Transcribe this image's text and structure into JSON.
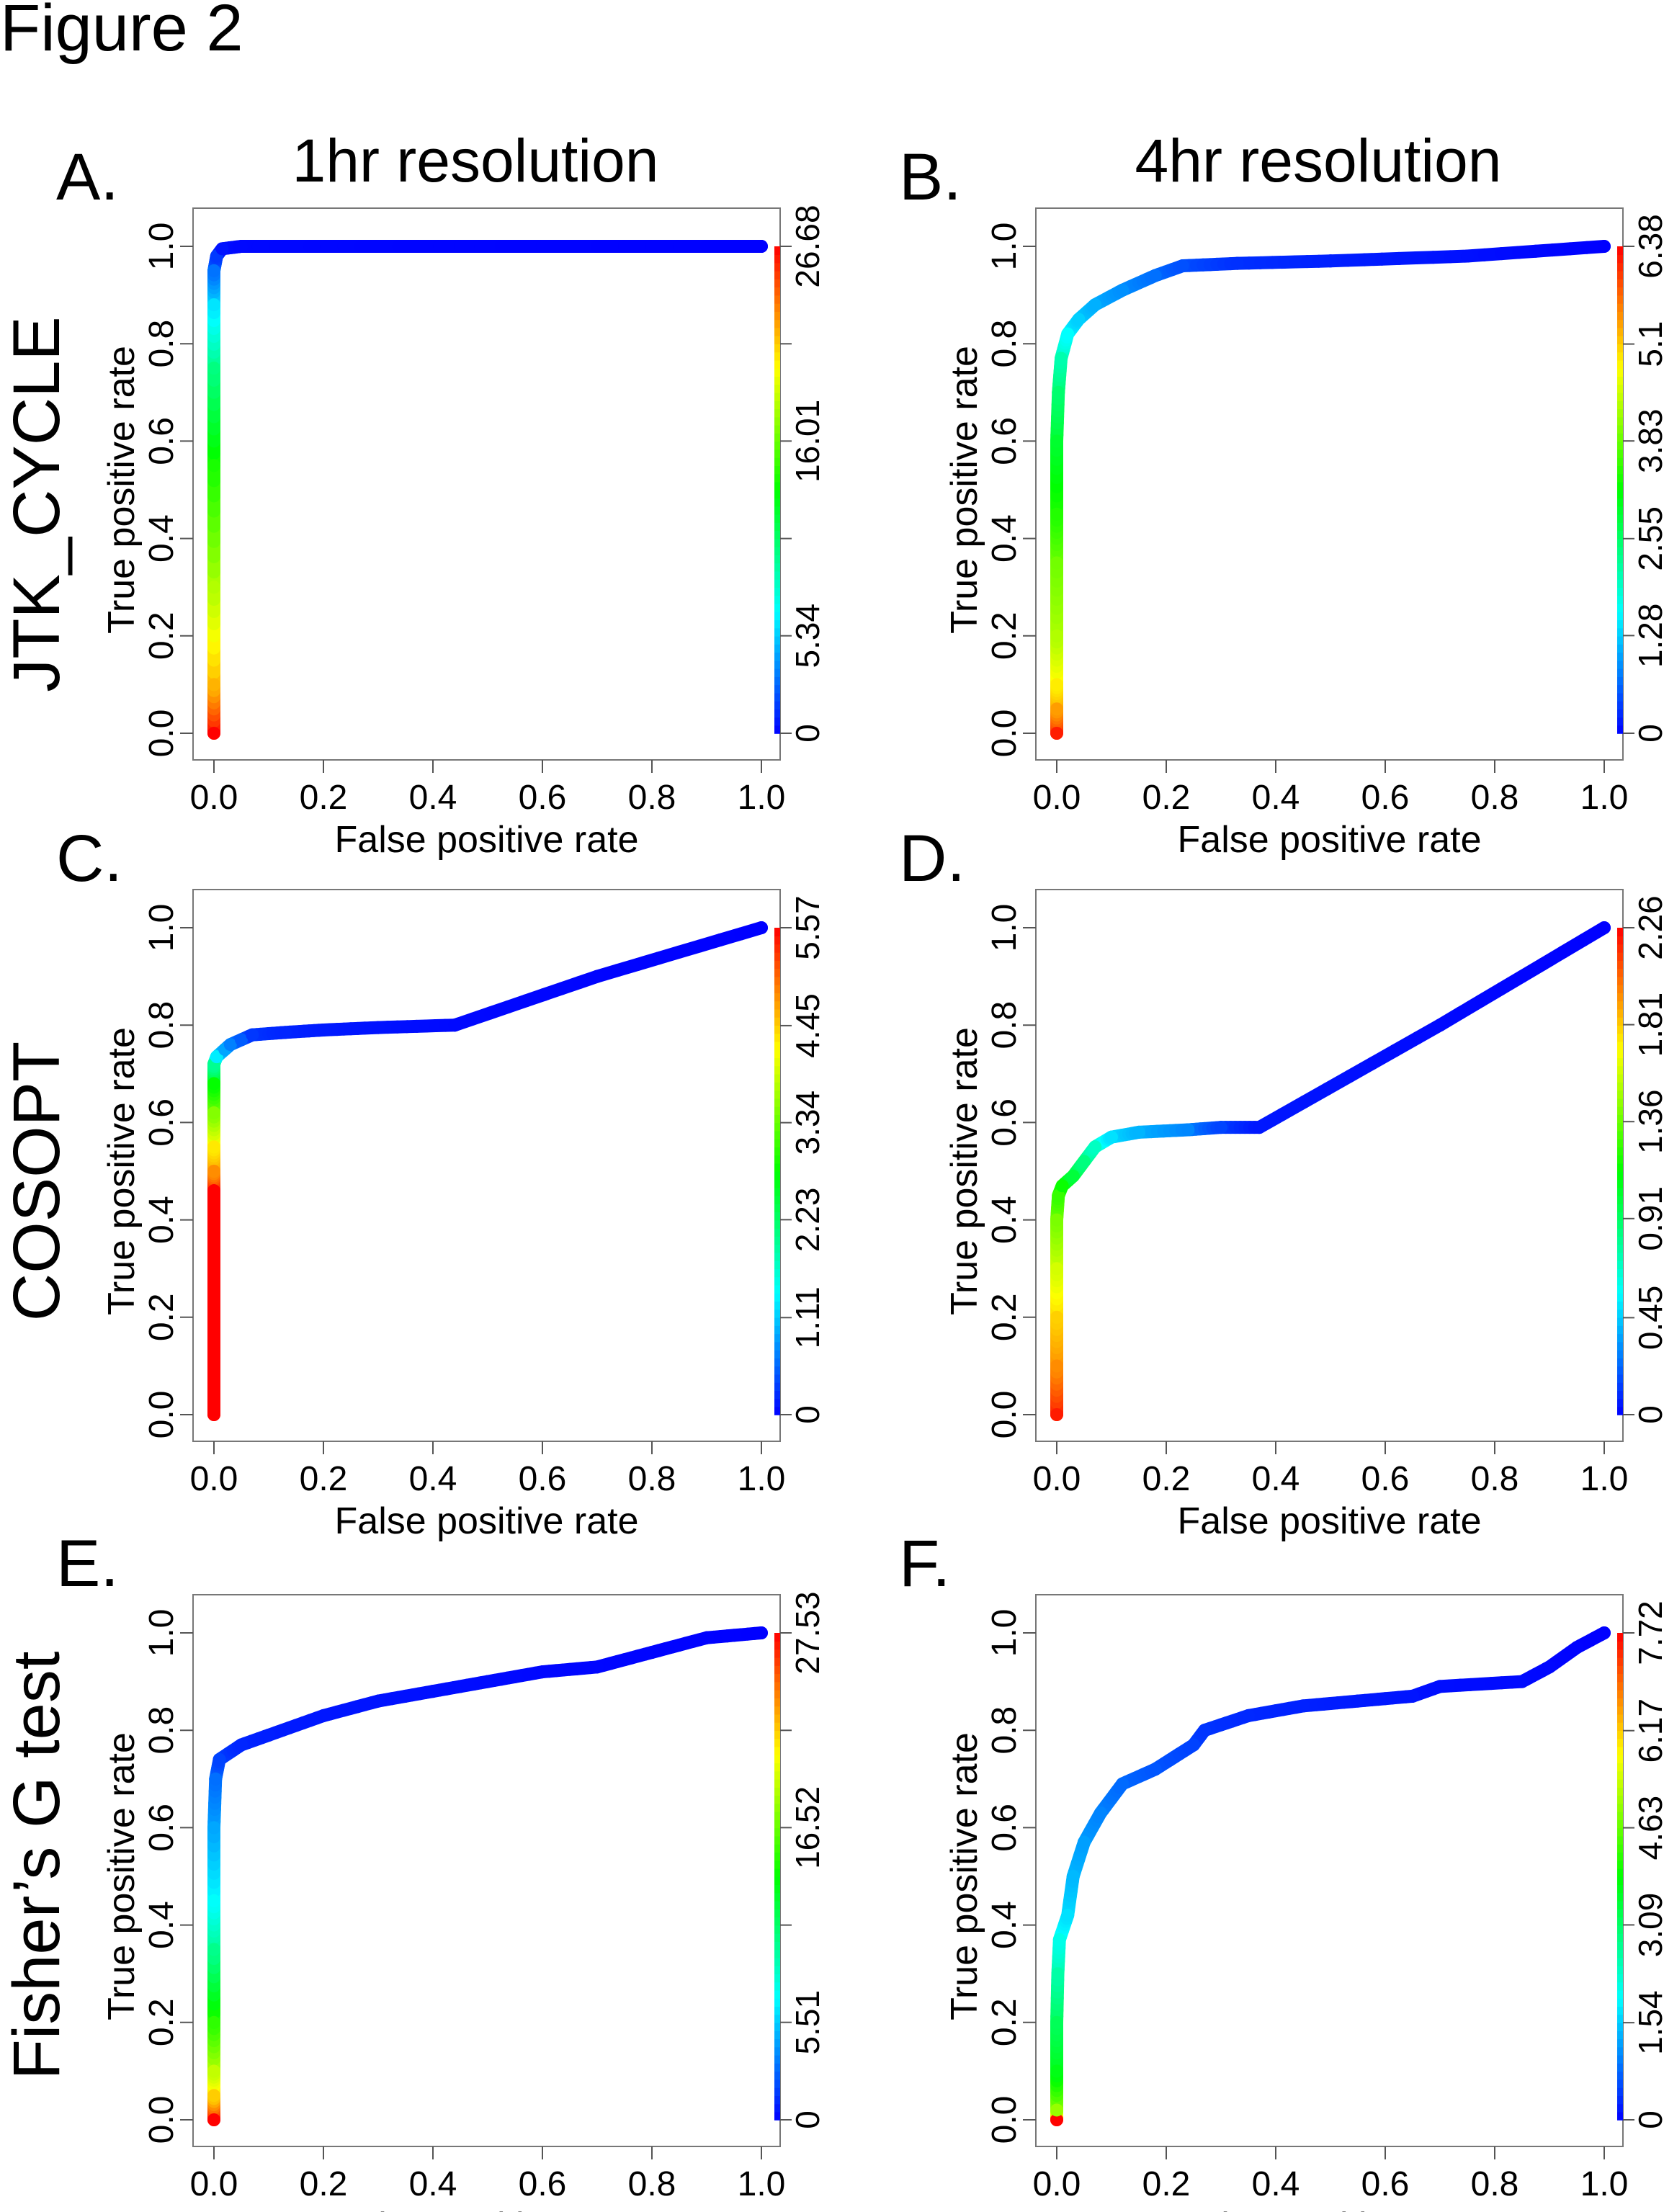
{
  "figure": {
    "title": "Figure 2",
    "column_titles": [
      "1hr resolution",
      "4hr resolution"
    ],
    "row_labels": [
      "JTK_CYCLE",
      "COSOPT",
      "Fisher’s G test"
    ]
  },
  "chart_data": [
    {
      "panel": "A.",
      "type": "line",
      "method": "JTK_CYCLE",
      "resolution": "1hr resolution",
      "xlabel": "False positive rate",
      "ylabel": "True positive rate",
      "xlim": [
        0,
        1
      ],
      "ylim": [
        0,
        1
      ],
      "xticks": [
        "0.0",
        "0.2",
        "0.4",
        "0.6",
        "0.8",
        "1.0"
      ],
      "yticks": [
        "0.0",
        "0.2",
        "0.4",
        "0.6",
        "0.8",
        "1.0"
      ],
      "colorbar": {
        "range": [
          0,
          26.68
        ],
        "tick_labels": [
          "0",
          "5.34",
          "",
          "16.01",
          "",
          "26.68"
        ],
        "tick_values": [
          0,
          5.34,
          10.67,
          16.01,
          21.34,
          26.68
        ],
        "colormap": "rainbow (blue-low to red-high)"
      },
      "points": [
        [
          0,
          0,
          26.68
        ],
        [
          0,
          0.1,
          22
        ],
        [
          0,
          0.3,
          18
        ],
        [
          0,
          0.55,
          14
        ],
        [
          0,
          0.75,
          10
        ],
        [
          0,
          0.88,
          6
        ],
        [
          0,
          0.95,
          3
        ],
        [
          0.005,
          0.98,
          1.5
        ],
        [
          0.015,
          0.995,
          0.5
        ],
        [
          0.05,
          1.0,
          0.2
        ],
        [
          0.3,
          1.0,
          0.1
        ],
        [
          0.6,
          1.0,
          0.05
        ],
        [
          1.0,
          1.0,
          0
        ]
      ]
    },
    {
      "panel": "B.",
      "type": "line",
      "method": "JTK_CYCLE",
      "resolution": "4hr resolution",
      "xlabel": "False positive rate",
      "ylabel": "True positive rate",
      "xlim": [
        0,
        1
      ],
      "ylim": [
        0,
        1
      ],
      "xticks": [
        "0.0",
        "0.2",
        "0.4",
        "0.6",
        "0.8",
        "1.0"
      ],
      "yticks": [
        "0.0",
        "0.2",
        "0.4",
        "0.6",
        "0.8",
        "1.0"
      ],
      "colorbar": {
        "range": [
          0,
          6.38
        ],
        "tick_labels": [
          "0",
          "1.28",
          "2.55",
          "3.83",
          "5.1",
          "6.38"
        ],
        "tick_values": [
          0,
          1.28,
          2.55,
          3.83,
          5.1,
          6.38
        ],
        "colormap": "rainbow (blue-low to red-high)"
      },
      "points": [
        [
          0,
          0,
          6.2
        ],
        [
          0,
          0.05,
          5.4
        ],
        [
          0,
          0.1,
          4.9
        ],
        [
          0,
          0.2,
          4.3
        ],
        [
          0,
          0.35,
          3.9
        ],
        [
          0,
          0.45,
          3.4
        ],
        [
          0,
          0.6,
          2.9
        ],
        [
          0.003,
          0.7,
          2.5
        ],
        [
          0.008,
          0.77,
          2.1
        ],
        [
          0.02,
          0.82,
          1.6
        ],
        [
          0.04,
          0.85,
          1.3
        ],
        [
          0.07,
          0.88,
          1.1
        ],
        [
          0.12,
          0.91,
          0.9
        ],
        [
          0.18,
          0.94,
          0.7
        ],
        [
          0.23,
          0.96,
          0.5
        ],
        [
          0.33,
          0.965,
          0.3
        ],
        [
          0.5,
          0.97,
          0.2
        ],
        [
          0.75,
          0.98,
          0.1
        ],
        [
          1.0,
          1.0,
          0
        ]
      ]
    },
    {
      "panel": "C.",
      "type": "line",
      "method": "COSOPT",
      "resolution": "1hr resolution",
      "xlabel": "False positive rate",
      "ylabel": "True positive rate",
      "xlim": [
        0,
        1
      ],
      "ylim": [
        0,
        1
      ],
      "xticks": [
        "0.0",
        "0.2",
        "0.4",
        "0.6",
        "0.8",
        "1.0"
      ],
      "yticks": [
        "0.0",
        "0.2",
        "0.4",
        "0.6",
        "0.8",
        "1.0"
      ],
      "colorbar": {
        "range": [
          0,
          5.57
        ],
        "tick_labels": [
          "0",
          "1.11",
          "2.23",
          "3.34",
          "4.45",
          "5.57"
        ],
        "tick_values": [
          0,
          1.11,
          2.23,
          3.34,
          4.45,
          5.57
        ],
        "colormap": "rainbow (blue-low to red-high)"
      },
      "points": [
        [
          0,
          0,
          5.57
        ],
        [
          0,
          0.46,
          5.57
        ],
        [
          0,
          0.5,
          4.8
        ],
        [
          0,
          0.55,
          4.3
        ],
        [
          0,
          0.62,
          3.5
        ],
        [
          0,
          0.68,
          2.8
        ],
        [
          0,
          0.72,
          2.0
        ],
        [
          0.005,
          0.735,
          1.3
        ],
        [
          0.02,
          0.75,
          0.9
        ],
        [
          0.03,
          0.76,
          0.7
        ],
        [
          0.05,
          0.77,
          0.5
        ],
        [
          0.07,
          0.78,
          0.3
        ],
        [
          0.13,
          0.785,
          0.2
        ],
        [
          0.2,
          0.79,
          0.15
        ],
        [
          0.3,
          0.795,
          0.1
        ],
        [
          0.44,
          0.8,
          0.05
        ],
        [
          0.7,
          0.9,
          0.02
        ],
        [
          1.0,
          1.0,
          0
        ]
      ]
    },
    {
      "panel": "D.",
      "type": "line",
      "method": "COSOPT",
      "resolution": "4hr resolution",
      "xlabel": "False positive rate",
      "ylabel": "True positive rate",
      "xlim": [
        0,
        1
      ],
      "ylim": [
        0,
        1
      ],
      "xticks": [
        "0.0",
        "0.2",
        "0.4",
        "0.6",
        "0.8",
        "1.0"
      ],
      "yticks": [
        "0.0",
        "0.2",
        "0.4",
        "0.6",
        "0.8",
        "1.0"
      ],
      "colorbar": {
        "range": [
          0,
          2.26
        ],
        "tick_labels": [
          "0",
          "0.45",
          "0.91",
          "1.36",
          "1.81",
          "2.26"
        ],
        "tick_values": [
          0,
          0.45,
          0.91,
          1.36,
          1.81,
          2.26
        ],
        "colormap": "rainbow (blue-low to red-high)"
      },
      "points": [
        [
          0,
          0,
          2.2
        ],
        [
          0,
          0.1,
          1.95
        ],
        [
          0,
          0.2,
          1.8
        ],
        [
          0,
          0.3,
          1.6
        ],
        [
          0,
          0.4,
          1.4
        ],
        [
          0.003,
          0.45,
          1.25
        ],
        [
          0.01,
          0.47,
          1.15
        ],
        [
          0.03,
          0.49,
          1.0
        ],
        [
          0.05,
          0.52,
          0.85
        ],
        [
          0.07,
          0.55,
          0.7
        ],
        [
          0.1,
          0.57,
          0.5
        ],
        [
          0.15,
          0.58,
          0.4
        ],
        [
          0.24,
          0.585,
          0.3
        ],
        [
          0.3,
          0.59,
          0.15
        ],
        [
          0.37,
          0.59,
          0.05
        ],
        [
          0.7,
          0.8,
          0.02
        ],
        [
          1.0,
          1.0,
          0
        ]
      ]
    },
    {
      "panel": "E.",
      "type": "line",
      "method": "Fisher’s G test",
      "resolution": "1hr resolution",
      "xlabel": "False positive rate",
      "ylabel": "True positive rate",
      "xlim": [
        0,
        1
      ],
      "ylim": [
        0,
        1
      ],
      "xticks": [
        "0.0",
        "0.2",
        "0.4",
        "0.6",
        "0.8",
        "1.0"
      ],
      "yticks": [
        "0.0",
        "0.2",
        "0.4",
        "0.6",
        "0.8",
        "1.0"
      ],
      "colorbar": {
        "range": [
          0,
          27.53
        ],
        "tick_labels": [
          "0",
          "5.51",
          "",
          "16.52",
          "",
          "27.53"
        ],
        "tick_values": [
          0,
          5.51,
          11.01,
          16.52,
          22.02,
          27.53
        ],
        "colormap": "rainbow (blue-low to red-high)"
      },
      "points": [
        [
          0,
          0,
          27.5
        ],
        [
          0,
          0.05,
          22
        ],
        [
          0,
          0.1,
          19
        ],
        [
          0,
          0.2,
          15
        ],
        [
          0,
          0.35,
          10
        ],
        [
          0,
          0.45,
          7
        ],
        [
          0,
          0.6,
          4.5
        ],
        [
          0.003,
          0.7,
          3.0
        ],
        [
          0.01,
          0.74,
          1.8
        ],
        [
          0.05,
          0.77,
          1.0
        ],
        [
          0.1,
          0.79,
          0.8
        ],
        [
          0.2,
          0.83,
          0.6
        ],
        [
          0.3,
          0.86,
          0.5
        ],
        [
          0.4,
          0.88,
          0.4
        ],
        [
          0.5,
          0.9,
          0.3
        ],
        [
          0.6,
          0.92,
          0.2
        ],
        [
          0.7,
          0.93,
          0.15
        ],
        [
          0.8,
          0.96,
          0.1
        ],
        [
          0.9,
          0.99,
          0.05
        ],
        [
          1.0,
          1.0,
          0
        ]
      ]
    },
    {
      "panel": "F.",
      "type": "line",
      "method": "Fisher’s G test",
      "resolution": "4hr resolution",
      "xlabel": "False positive rate",
      "ylabel": "True positive rate",
      "xlim": [
        0,
        1
      ],
      "ylim": [
        0,
        1
      ],
      "xticks": [
        "0.0",
        "0.2",
        "0.4",
        "0.6",
        "0.8",
        "1.0"
      ],
      "yticks": [
        "0.0",
        "0.2",
        "0.4",
        "0.6",
        "0.8",
        "1.0"
      ],
      "colorbar": {
        "range": [
          0,
          7.72
        ],
        "tick_labels": [
          "0",
          "1.54",
          "3.09",
          "4.63",
          "6.17",
          "7.72"
        ],
        "tick_values": [
          0,
          1.54,
          3.09,
          4.63,
          6.17,
          7.72
        ],
        "colormap": "rainbow (blue-low to red-high)"
      },
      "points": [
        [
          0,
          0,
          7.7
        ],
        [
          0,
          0.02,
          5.0
        ],
        [
          0,
          0.1,
          3.7
        ],
        [
          0,
          0.2,
          3.2
        ],
        [
          0.002,
          0.3,
          2.6
        ],
        [
          0.005,
          0.37,
          2.1
        ],
        [
          0.02,
          0.42,
          1.7
        ],
        [
          0.03,
          0.5,
          1.4
        ],
        [
          0.05,
          0.57,
          1.2
        ],
        [
          0.08,
          0.63,
          1.0
        ],
        [
          0.12,
          0.69,
          0.8
        ],
        [
          0.18,
          0.72,
          0.65
        ],
        [
          0.25,
          0.77,
          0.5
        ],
        [
          0.27,
          0.8,
          0.4
        ],
        [
          0.35,
          0.83,
          0.3
        ],
        [
          0.45,
          0.85,
          0.25
        ],
        [
          0.55,
          0.86,
          0.2
        ],
        [
          0.65,
          0.87,
          0.15
        ],
        [
          0.7,
          0.89,
          0.1
        ],
        [
          0.85,
          0.9,
          0.08
        ],
        [
          0.9,
          0.93,
          0.05
        ],
        [
          0.95,
          0.97,
          0.02
        ],
        [
          1.0,
          1.0,
          0
        ]
      ]
    }
  ]
}
